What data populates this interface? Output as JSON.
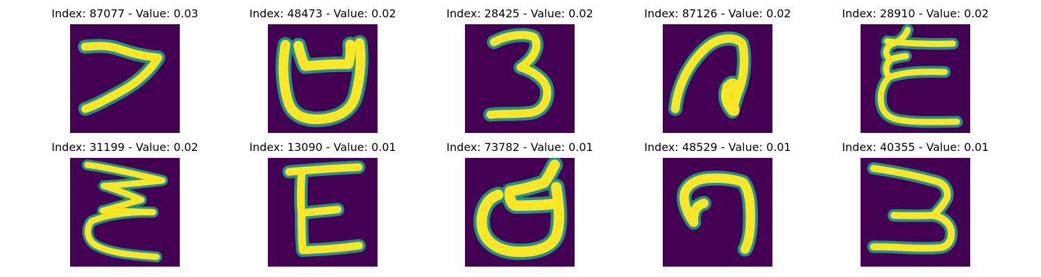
{
  "panels": [
    {
      "title": "Index: 87077 - Value: 0.03",
      "index": 87077,
      "value": 0.03,
      "glyph": "glyph-0"
    },
    {
      "title": "Index: 48473 - Value: 0.02",
      "index": 48473,
      "value": 0.02,
      "glyph": "glyph-1"
    },
    {
      "title": "Index: 28425 - Value: 0.02",
      "index": 28425,
      "value": 0.02,
      "glyph": "glyph-2"
    },
    {
      "title": "Index: 87126 - Value: 0.02",
      "index": 87126,
      "value": 0.02,
      "glyph": "glyph-3"
    },
    {
      "title": "Index: 28910 - Value: 0.02",
      "index": 28910,
      "value": 0.02,
      "glyph": "glyph-4"
    },
    {
      "title": "Index: 31199 - Value: 0.02",
      "index": 31199,
      "value": 0.02,
      "glyph": "glyph-5"
    },
    {
      "title": "Index: 13090 - Value: 0.01",
      "index": 13090,
      "value": 0.01,
      "glyph": "glyph-6"
    },
    {
      "title": "Index: 73782 - Value: 0.01",
      "index": 73782,
      "value": 0.01,
      "glyph": "glyph-7"
    },
    {
      "title": "Index: 48529 - Value: 0.01",
      "index": 48529,
      "value": 0.01,
      "glyph": "glyph-8"
    },
    {
      "title": "Index: 40355 - Value: 0.01",
      "index": 40355,
      "value": 0.01,
      "glyph": "glyph-9"
    }
  ],
  "colors": {
    "background": "#440154",
    "edge": "#21918c",
    "stroke": "#fde725"
  }
}
